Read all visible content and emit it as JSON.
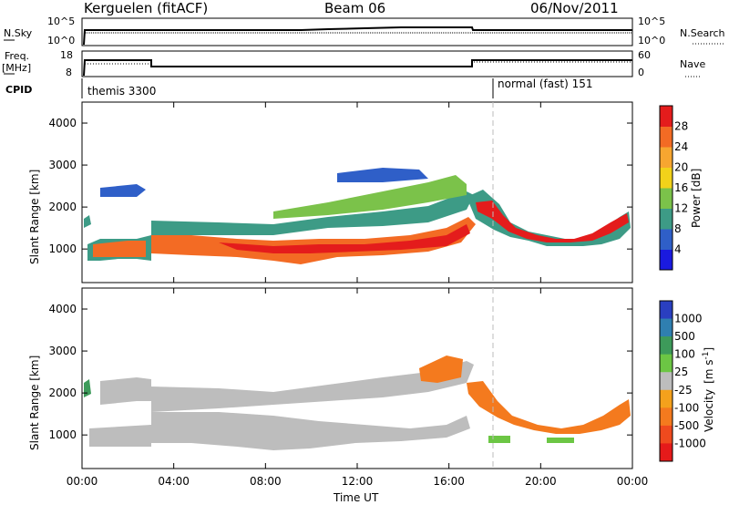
{
  "header": {
    "station": "Kerguelen (fitACF)",
    "beam": "Beam 06",
    "date": "06/Nov/2011"
  },
  "top_panels": {
    "nsky_label": "N.Sky",
    "nsky_ticks": [
      "10^5",
      "10^0"
    ],
    "nsearch_label": "N.Search",
    "nsearch_ticks": [
      "10^5",
      "10^0"
    ],
    "freq_label_1": "Freq.",
    "freq_label_2": "[MHz]",
    "freq_ticks": [
      "18",
      "8"
    ],
    "nave_label": "Nave",
    "nave_ticks": [
      "60",
      "0"
    ],
    "cpid_label": "CPID",
    "cpid_modes": [
      "themis 3300",
      "normal (fast) 151"
    ]
  },
  "chart_data": [
    {
      "type": "heatmap",
      "panel": "power",
      "xlabel": "",
      "ylabel": "Slant Range [km]",
      "x_ticks": [
        "00:00",
        "04:00",
        "08:00",
        "12:00",
        "16:00",
        "20:00",
        "00:00"
      ],
      "y_ticks": [
        1000,
        2000,
        3000,
        4000
      ],
      "ylim": [
        200,
        4500
      ],
      "colorbar": {
        "label": "Power [dB]",
        "ticks": [
          "4",
          "8",
          "12",
          "16",
          "20",
          "24",
          "28"
        ],
        "colors": [
          "#1a1adf",
          "#2f5fc8",
          "#3d9b86",
          "#7bc24a",
          "#f2d21a",
          "#f7a630",
          "#f36b24",
          "#e41c1c"
        ]
      }
    },
    {
      "type": "heatmap",
      "panel": "velocity",
      "xlabel": "Time UT",
      "ylabel": "Slant Range [km]",
      "x_ticks": [
        "00:00",
        "04:00",
        "08:00",
        "12:00",
        "16:00",
        "20:00",
        "00:00"
      ],
      "y_ticks": [
        1000,
        2000,
        3000,
        4000
      ],
      "ylim": [
        200,
        4500
      ],
      "colorbar": {
        "label": "Velocity",
        "label_unit": "[m s",
        "label_exp": "-1",
        "label_close": "]",
        "ticks": [
          "1000",
          "500",
          "100",
          "25",
          "-25",
          "-100",
          "-500",
          "-1000"
        ],
        "colors": [
          "#2a3fc0",
          "#2f7fb0",
          "#3d9a5a",
          "#6cc644",
          "#bdbdbd",
          "#f4a11c",
          "#f47a1e",
          "#ef4a1e",
          "#e51a1a"
        ]
      }
    }
  ]
}
